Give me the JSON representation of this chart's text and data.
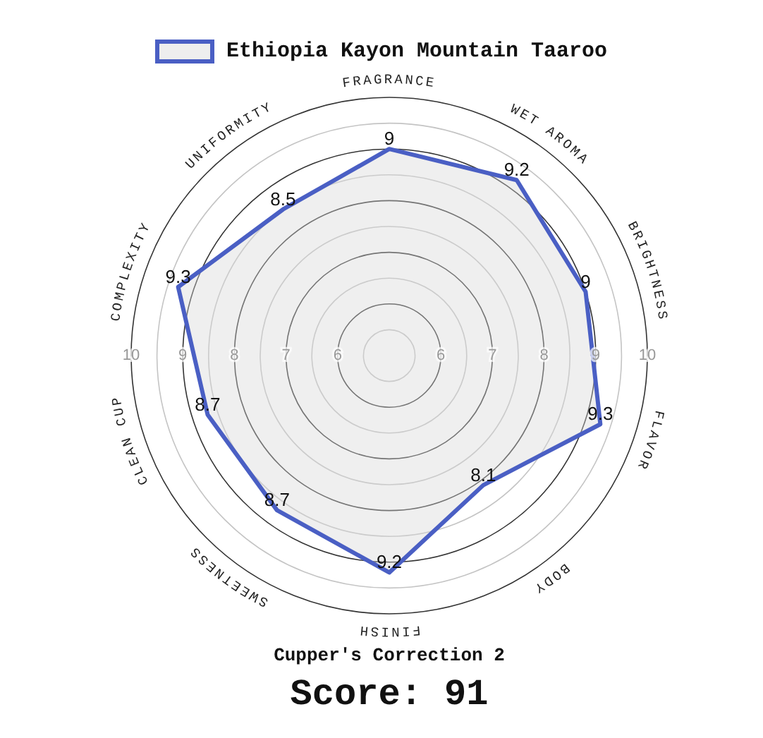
{
  "chart_data": {
    "type": "radar",
    "categories": [
      "FRAGRANCE",
      "WET AROMA",
      "BRIGHTNESS",
      "FLAVOR",
      "BODY",
      "FINISH",
      "SWEETNESS",
      "CLEAN CUP",
      "COMPLEXITY",
      "UNIFORMITY"
    ],
    "series": [
      {
        "name": "Ethiopia Kayon Mountain Taaroo",
        "color": "#4a5fc4",
        "values": [
          9,
          9.2,
          9,
          9.3,
          8.1,
          9.2,
          8.7,
          8.7,
          9.3,
          8.5
        ]
      }
    ],
    "ylim": [
      5,
      10
    ],
    "yticks": [
      6,
      7,
      8,
      9,
      10,
      6,
      7,
      8,
      9,
      10
    ],
    "grid": true,
    "legend": "top",
    "data_labels": true,
    "annotations": [
      "Cupper's Correction 2",
      "Score: 91"
    ]
  }
}
